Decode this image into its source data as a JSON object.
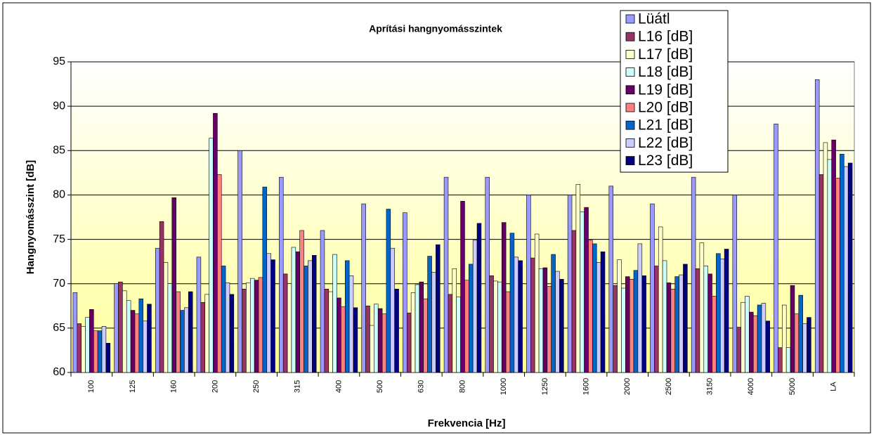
{
  "chart_data": {
    "type": "bar",
    "title": "Aprítási hangnyomásszintek",
    "x_label": "Frekvencia [Hz]",
    "y_label": "Hangnyomásszint [dB]",
    "categories": [
      "100",
      "125",
      "160",
      "200",
      "250",
      "315",
      "400",
      "500",
      "630",
      "800",
      "1000",
      "1250",
      "1600",
      "2000",
      "2500",
      "3150",
      "4000",
      "5000",
      "LA"
    ],
    "ylim": [
      60,
      95
    ],
    "yticks": [
      60,
      65,
      70,
      75,
      80,
      85,
      90,
      95
    ],
    "grid": true,
    "legend": "top-right",
    "series": [
      {
        "name": "Lüátl",
        "color": "#9999ff",
        "values": [
          69,
          70,
          74,
          73,
          85,
          82,
          76,
          79,
          78,
          82,
          82,
          80,
          80,
          81,
          79,
          82,
          80,
          88,
          93
        ]
      },
      {
        "name": "L16 [dB]",
        "color": "#993366",
        "values": [
          65.5,
          70.2,
          77,
          67.9,
          69.4,
          71.1,
          69.4,
          67.5,
          66.7,
          68.8,
          70.9,
          72.9,
          76.0,
          69.8,
          72.0,
          71.7,
          65.1,
          62.8,
          82.3
        ]
      },
      {
        "name": "L17 [dB]",
        "color": "#ffffcc",
        "values": [
          65.2,
          69.2,
          72.4,
          68.8,
          70.1,
          70.0,
          69.1,
          65.3,
          69.0,
          71.7,
          70.3,
          75.6,
          81.2,
          72.7,
          76.4,
          74.6,
          67.9,
          67.6,
          85.9
        ]
      },
      {
        "name": "L18 [dB]",
        "color": "#ccffff",
        "values": [
          66.2,
          68.1,
          70.0,
          86.4,
          70.6,
          74.1,
          73.3,
          67.7,
          69.9,
          68.5,
          70.2,
          71.7,
          78.1,
          69.5,
          72.6,
          72.0,
          68.6,
          62.8,
          84.0
        ]
      },
      {
        "name": "L19 [dB]",
        "color": "#660066",
        "values": [
          67.1,
          67.0,
          79.7,
          89.2,
          70.4,
          73.6,
          68.4,
          67.2,
          70.2,
          79.3,
          76.9,
          71.8,
          78.6,
          70.8,
          70.1,
          71.1,
          66.8,
          69.8,
          86.2
        ]
      },
      {
        "name": "L20 [dB]",
        "color": "#ff8080",
        "values": [
          64.7,
          66.6,
          69.1,
          82.3,
          70.7,
          76.0,
          67.4,
          66.6,
          68.3,
          70.4,
          69.1,
          69.7,
          74.9,
          70.5,
          69.4,
          68.6,
          66.4,
          66.6,
          81.9
        ]
      },
      {
        "name": "L21 [dB]",
        "color": "#0066cc",
        "values": [
          64.7,
          68.3,
          67.0,
          72.0,
          80.9,
          72.0,
          72.6,
          78.4,
          73.1,
          72.2,
          75.7,
          73.3,
          74.5,
          71.5,
          70.8,
          73.4,
          67.6,
          68.7,
          84.6
        ]
      },
      {
        "name": "L22 [dB]",
        "color": "#ccccff",
        "values": [
          65.2,
          65.8,
          67.3,
          70.1,
          73.4,
          72.6,
          70.9,
          74.0,
          71.3,
          74.9,
          73.0,
          71.4,
          72.4,
          74.5,
          71.0,
          72.8,
          67.8,
          65.5,
          83.2
        ]
      },
      {
        "name": "L23 [dB]",
        "color": "#000080",
        "values": [
          63.3,
          67.7,
          69.1,
          68.8,
          72.7,
          73.2,
          67.3,
          69.4,
          74.4,
          76.8,
          72.6,
          70.5,
          73.6,
          70.9,
          72.2,
          73.9,
          65.8,
          66.2,
          83.6
        ]
      }
    ]
  }
}
